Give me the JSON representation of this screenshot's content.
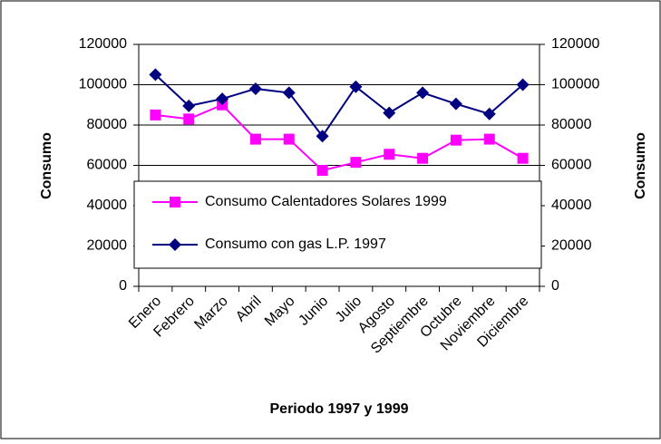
{
  "chart_data": {
    "type": "line",
    "x_label": "Periodo 1997 y 1999",
    "y_label": "Consumo",
    "y2_label": "Consumo",
    "categories": [
      "Enero",
      "Febrero",
      "Marzo",
      "Abril",
      "Mayo",
      "Junio",
      "Julio",
      "Agosto",
      "Septiembre",
      "Octubre",
      "Noviembre",
      "Diciembre"
    ],
    "series": [
      {
        "name": "Consumo Calentadores Solares 1999",
        "color": "#ff00ff",
        "marker": "square",
        "values": [
          85000,
          83000,
          90000,
          73000,
          73000,
          57500,
          61500,
          65500,
          63500,
          72500,
          73000,
          63500
        ]
      },
      {
        "name": "Consumo con gas L.P. 1997",
        "color": "#000080",
        "marker": "diamond",
        "values": [
          105000,
          89500,
          93000,
          98000,
          96000,
          74500,
          99000,
          86000,
          96000,
          90500,
          85500,
          100000
        ]
      }
    ],
    "ylim": [
      0,
      120000
    ],
    "yticks": [
      0,
      20000,
      40000,
      60000,
      80000,
      100000,
      120000
    ],
    "y2lim": [
      0,
      120000
    ],
    "y2ticks": [
      0,
      20000,
      40000,
      60000,
      80000,
      100000,
      120000
    ],
    "grid": true,
    "legend": "lower center"
  }
}
